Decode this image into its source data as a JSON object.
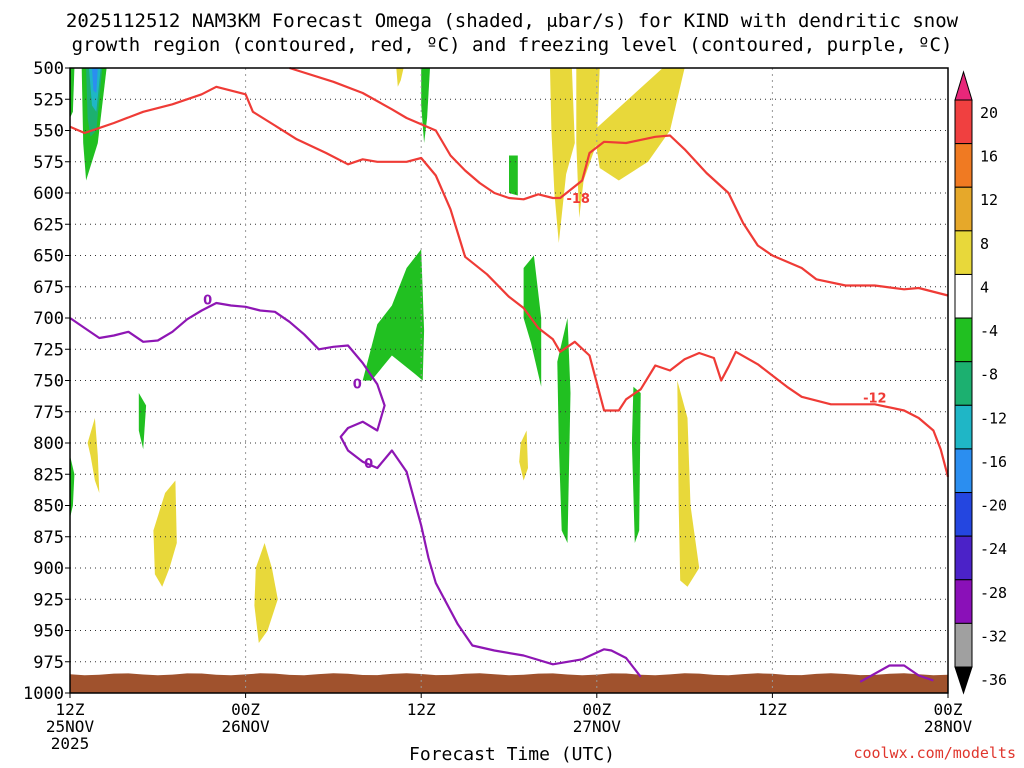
{
  "title_line1": "2025112512 NAM3KM Forecast Omega (shaded, μbar/s) for KIND with dendritic snow",
  "title_line2": "growth region (contoured, red, ºC) and freezing level (contoured, purple, ºC)",
  "credit": "coolwx.com/modelts",
  "chart_data": {
    "type": "time-height contour",
    "xlabel": "Forecast Time (UTC)",
    "ylabel": "",
    "x_unit": "hours from 2025-11-25 12Z",
    "xlim": [
      0,
      60
    ],
    "ylim": [
      1000,
      500
    ],
    "y_reversed": true,
    "grid": true,
    "x_ticks": [
      {
        "x": 0,
        "lines": [
          "12Z",
          "25NOV",
          "2025"
        ]
      },
      {
        "x": 12,
        "lines": [
          "00Z",
          "26NOV"
        ]
      },
      {
        "x": 24,
        "lines": [
          "12Z"
        ]
      },
      {
        "x": 36,
        "lines": [
          "00Z",
          "27NOV"
        ]
      },
      {
        "x": 48,
        "lines": [
          "12Z"
        ]
      },
      {
        "x": 60,
        "lines": [
          "00Z",
          "28NOV"
        ]
      }
    ],
    "y_ticks": [
      500,
      525,
      550,
      575,
      600,
      625,
      650,
      675,
      700,
      725,
      750,
      775,
      800,
      825,
      850,
      875,
      900,
      925,
      950,
      975,
      1000
    ],
    "colorbar": {
      "labels": [
        "20",
        "16",
        "12",
        "8",
        "4",
        "-4",
        "-8",
        "-12",
        "-16",
        "-20",
        "-24",
        "-28",
        "-32",
        "-36"
      ],
      "colors": [
        "#e8277a",
        "#f04040",
        "#f07a22",
        "#e6a82a",
        "#e8d83a",
        "#ffffff",
        "#21c021",
        "#1cb070",
        "#1fb6c6",
        "#2b8ef0",
        "#2446e0",
        "#4b22c8",
        "#8a10b8",
        "#a0a0a0",
        "#000000"
      ]
    },
    "series": [
      {
        "name": "",
        "color": "#ef3b36",
        "label": "-12",
        "points": [
          [
            0,
            547
          ],
          [
            1,
            552
          ],
          [
            3,
            544
          ],
          [
            5,
            535
          ],
          [
            7,
            529
          ],
          [
            9,
            521
          ],
          [
            10,
            515
          ],
          [
            12,
            521
          ],
          [
            12.5,
            535
          ],
          [
            14,
            546
          ],
          [
            15.5,
            557
          ],
          [
            17.5,
            568
          ],
          [
            19,
            577
          ],
          [
            20,
            573
          ],
          [
            21,
            575
          ],
          [
            23,
            575
          ],
          [
            24,
            572
          ],
          [
            25,
            586
          ],
          [
            26,
            613
          ],
          [
            26.5,
            632
          ],
          [
            27,
            651
          ],
          [
            28.5,
            665
          ],
          [
            30,
            683
          ],
          [
            31,
            692
          ],
          [
            32,
            708
          ],
          [
            33,
            717
          ],
          [
            33.5,
            727
          ],
          [
            34.5,
            719
          ],
          [
            35.5,
            730
          ],
          [
            36,
            752
          ],
          [
            36.5,
            774
          ],
          [
            37.5,
            774
          ],
          [
            38,
            765
          ],
          [
            39,
            757
          ],
          [
            40,
            738
          ],
          [
            41,
            742
          ],
          [
            42,
            733
          ],
          [
            43,
            728
          ],
          [
            44,
            732
          ],
          [
            44.5,
            750
          ],
          [
            45,
            739
          ],
          [
            45.5,
            727
          ],
          [
            47,
            737
          ],
          [
            49,
            755
          ],
          [
            50,
            763
          ],
          [
            52,
            769
          ],
          [
            55,
            769
          ],
          [
            57,
            774
          ],
          [
            58,
            780
          ],
          [
            59,
            790
          ],
          [
            59.5,
            805
          ],
          [
            60,
            827
          ]
        ]
      },
      {
        "name": "",
        "color": "#ef3b36",
        "label": "-18",
        "points": [
          [
            15,
            500
          ],
          [
            18,
            511
          ],
          [
            20,
            520
          ],
          [
            22,
            533
          ],
          [
            23,
            540
          ],
          [
            24,
            545
          ],
          [
            25,
            550
          ],
          [
            26,
            570
          ],
          [
            27,
            582
          ],
          [
            28,
            592
          ],
          [
            29,
            600
          ],
          [
            30,
            604
          ],
          [
            31,
            605
          ],
          [
            32,
            601
          ],
          [
            33,
            604
          ],
          [
            33.5,
            604
          ],
          [
            35,
            590
          ],
          [
            35.5,
            568
          ],
          [
            36.5,
            559
          ],
          [
            38,
            560
          ],
          [
            40,
            555
          ],
          [
            41,
            554
          ],
          [
            42,
            565
          ],
          [
            43.5,
            584
          ],
          [
            45,
            600
          ],
          [
            46,
            624
          ],
          [
            47,
            642
          ],
          [
            48,
            650
          ],
          [
            50,
            660
          ],
          [
            51,
            669
          ],
          [
            53,
            674
          ],
          [
            55,
            674
          ],
          [
            57,
            677
          ],
          [
            58,
            676
          ],
          [
            60,
            682
          ]
        ]
      },
      {
        "name": "",
        "color": "#8e16b4",
        "label": "0",
        "points": [
          [
            0,
            700
          ],
          [
            1,
            708
          ],
          [
            2,
            716
          ],
          [
            3,
            714
          ],
          [
            4,
            711
          ],
          [
            5,
            719
          ],
          [
            6,
            718
          ],
          [
            7,
            711
          ],
          [
            8,
            701
          ],
          [
            9,
            694
          ],
          [
            10,
            688
          ],
          [
            11,
            690
          ],
          [
            12,
            691
          ],
          [
            13,
            694
          ],
          [
            14,
            695
          ],
          [
            15,
            703
          ],
          [
            16,
            713
          ],
          [
            17,
            725
          ],
          [
            18,
            723
          ],
          [
            19,
            722
          ],
          [
            20,
            736
          ],
          [
            21,
            753
          ],
          [
            21.5,
            770
          ],
          [
            21,
            790
          ],
          [
            20,
            783
          ],
          [
            19,
            788
          ],
          [
            18.5,
            795
          ],
          [
            19,
            806
          ],
          [
            20,
            815
          ],
          [
            21,
            820
          ],
          [
            22,
            806
          ],
          [
            23,
            823
          ],
          [
            24,
            866
          ],
          [
            24.5,
            892
          ],
          [
            25,
            912
          ],
          [
            26.5,
            945
          ],
          [
            27.5,
            962
          ],
          [
            29,
            966
          ],
          [
            31,
            970
          ],
          [
            33,
            977
          ],
          [
            35,
            973
          ],
          [
            36.5,
            965
          ],
          [
            37,
            966
          ],
          [
            38,
            972
          ],
          [
            39,
            987
          ]
        ]
      },
      {
        "name": "",
        "color": "#8e16b4",
        "label": "",
        "points": [
          [
            54,
            991
          ],
          [
            56,
            978
          ],
          [
            57,
            978
          ],
          [
            58,
            986
          ],
          [
            59,
            990
          ]
        ]
      }
    ],
    "shaded_regions": [
      {
        "value": "-8",
        "color": "#21c021",
        "points": [
          [
            0,
            500
          ],
          [
            0.3,
            500
          ],
          [
            0.2,
            535
          ],
          [
            0,
            540
          ]
        ]
      },
      {
        "value": "-8",
        "color": "#21c021",
        "points": [
          [
            0,
            810
          ],
          [
            0.3,
            825
          ],
          [
            0.2,
            850
          ],
          [
            0,
            860
          ]
        ]
      },
      {
        "value": "-8",
        "color": "#21c021",
        "points": [
          [
            0.8,
            500
          ],
          [
            2.5,
            500
          ],
          [
            1.9,
            560
          ],
          [
            1.1,
            590
          ],
          [
            0.9,
            560
          ]
        ]
      },
      {
        "value": "-12",
        "color": "#1cb070",
        "points": [
          [
            1.1,
            500
          ],
          [
            2.2,
            500
          ],
          [
            1.8,
            550
          ],
          [
            1.4,
            555
          ],
          [
            1.2,
            540
          ]
        ]
      },
      {
        "value": "-16",
        "color": "#1fb6c6",
        "points": [
          [
            1.3,
            500
          ],
          [
            2.1,
            500
          ],
          [
            1.8,
            535
          ],
          [
            1.5,
            530
          ]
        ]
      },
      {
        "value": "-20",
        "color": "#2b8ef0",
        "points": [
          [
            1.5,
            500
          ],
          [
            1.9,
            500
          ],
          [
            1.8,
            520
          ],
          [
            1.6,
            518
          ]
        ]
      },
      {
        "value": "-8",
        "color": "#21c021",
        "points": [
          [
            4.7,
            760
          ],
          [
            5.2,
            770
          ],
          [
            5.0,
            805
          ],
          [
            4.7,
            790
          ]
        ]
      },
      {
        "value": "-8",
        "color": "#21c021",
        "points": [
          [
            24.0,
            500
          ],
          [
            24.6,
            500
          ],
          [
            24.4,
            540
          ],
          [
            24.2,
            560
          ],
          [
            24.0,
            530
          ]
        ]
      },
      {
        "value": "-8",
        "color": "#21c021",
        "points": [
          [
            20.0,
            750
          ],
          [
            21.0,
            705
          ],
          [
            22.0,
            690
          ],
          [
            23.0,
            660
          ],
          [
            24.0,
            645
          ],
          [
            24.2,
            710
          ],
          [
            24.1,
            750
          ],
          [
            23.6,
            745
          ],
          [
            22.0,
            730
          ],
          [
            20.6,
            750
          ]
        ]
      },
      {
        "value": "-8",
        "color": "#21c021",
        "points": [
          [
            30.0,
            570
          ],
          [
            30.6,
            570
          ],
          [
            30.6,
            602
          ],
          [
            30.0,
            600
          ]
        ]
      },
      {
        "value": "-8",
        "color": "#21c021",
        "points": [
          [
            31.0,
            660
          ],
          [
            31.7,
            650
          ],
          [
            32.2,
            700
          ],
          [
            32.2,
            755
          ],
          [
            31.5,
            720
          ],
          [
            31.0,
            700
          ]
        ]
      },
      {
        "value": "-8",
        "color": "#21c021",
        "points": [
          [
            33.3,
            735
          ],
          [
            34.0,
            700
          ],
          [
            34.2,
            760
          ],
          [
            34.0,
            880
          ],
          [
            33.6,
            870
          ],
          [
            33.4,
            800
          ]
        ]
      },
      {
        "value": "-8",
        "color": "#21c021",
        "points": [
          [
            38.5,
            755
          ],
          [
            39.0,
            760
          ],
          [
            38.9,
            870
          ],
          [
            38.6,
            880
          ],
          [
            38.4,
            800
          ]
        ]
      },
      {
        "value": "4",
        "color": "#e8d83a",
        "points": [
          [
            1.2,
            800
          ],
          [
            1.7,
            780
          ],
          [
            1.9,
            810
          ],
          [
            2.0,
            840
          ],
          [
            1.7,
            830
          ],
          [
            1.4,
            810
          ]
        ]
      },
      {
        "value": "4",
        "color": "#e8d83a",
        "points": [
          [
            5.7,
            870
          ],
          [
            6.5,
            840
          ],
          [
            7.2,
            830
          ],
          [
            7.3,
            880
          ],
          [
            6.8,
            900
          ],
          [
            6.3,
            915
          ],
          [
            5.8,
            905
          ]
        ]
      },
      {
        "value": "4",
        "color": "#e8d83a",
        "points": [
          [
            12.7,
            900
          ],
          [
            13.3,
            880
          ],
          [
            13.8,
            900
          ],
          [
            14.2,
            925
          ],
          [
            13.5,
            950
          ],
          [
            12.9,
            960
          ],
          [
            12.6,
            930
          ]
        ]
      },
      {
        "value": "4",
        "color": "#e8d83a",
        "points": [
          [
            22.3,
            500
          ],
          [
            22.8,
            500
          ],
          [
            22.6,
            510
          ],
          [
            22.4,
            515
          ]
        ]
      },
      {
        "value": "4",
        "color": "#e8d83a",
        "points": [
          [
            30.8,
            800
          ],
          [
            31.2,
            790
          ],
          [
            31.3,
            820
          ],
          [
            31.0,
            830
          ],
          [
            30.7,
            815
          ]
        ]
      },
      {
        "value": "4",
        "color": "#e8d83a",
        "points": [
          [
            32.8,
            500
          ],
          [
            34.3,
            500
          ],
          [
            34.5,
            560
          ],
          [
            33.9,
            585
          ],
          [
            33.4,
            640
          ],
          [
            33.1,
            600
          ],
          [
            32.9,
            550
          ]
        ]
      },
      {
        "value": "4",
        "color": "#e8d83a",
        "points": [
          [
            34.6,
            500
          ],
          [
            36.2,
            500
          ],
          [
            36.0,
            560
          ],
          [
            35.1,
            590
          ],
          [
            34.8,
            620
          ],
          [
            34.6,
            560
          ]
        ]
      },
      {
        "value": "4",
        "color": "#e8d83a",
        "points": [
          [
            35.8,
            550
          ],
          [
            40.5,
            500
          ],
          [
            42.0,
            500
          ],
          [
            41.0,
            550
          ],
          [
            39.5,
            575
          ],
          [
            37.5,
            590
          ],
          [
            36.2,
            580
          ]
        ]
      },
      {
        "value": "4",
        "color": "#e8d83a",
        "points": [
          [
            41.5,
            750
          ],
          [
            42.2,
            780
          ],
          [
            42.4,
            850
          ],
          [
            43.0,
            900
          ],
          [
            42.2,
            915
          ],
          [
            41.7,
            910
          ],
          [
            41.6,
            850
          ]
        ]
      }
    ],
    "terrain_top_hpa": 985,
    "terrain_color": "#a0522d"
  }
}
